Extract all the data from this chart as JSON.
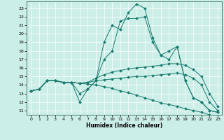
{
  "xlabel": "Humidex (Indice chaleur)",
  "background_color": "#cceee8",
  "grid_color": "#ffffff",
  "line_color": "#1a7a6e",
  "xlim": [
    -0.5,
    23.5
  ],
  "ylim": [
    10.5,
    23.8
  ],
  "yticks": [
    11,
    12,
    13,
    14,
    15,
    16,
    17,
    18,
    19,
    20,
    21,
    22,
    23
  ],
  "xticks": [
    0,
    1,
    2,
    3,
    4,
    5,
    6,
    7,
    8,
    9,
    10,
    11,
    12,
    13,
    14,
    15,
    16,
    17,
    18,
    19,
    20,
    21,
    22,
    23
  ],
  "series": [
    [
      13.3,
      13.5,
      14.5,
      14.5,
      14.3,
      14.3,
      13.0,
      13.5,
      14.5,
      19.0,
      21.0,
      20.5,
      22.5,
      23.5,
      23.0,
      19.5,
      17.5,
      18.0,
      18.5,
      14.5,
      12.5,
      12.0,
      11.0,
      10.8
    ],
    [
      13.3,
      13.5,
      14.5,
      14.5,
      14.3,
      14.3,
      12.0,
      13.5,
      14.5,
      17.0,
      18.0,
      21.5,
      21.8,
      21.8,
      22.0,
      19.0,
      17.5,
      17.0,
      18.5,
      14.5,
      12.5,
      12.0,
      11.0,
      10.8
    ],
    [
      13.3,
      13.5,
      14.5,
      14.5,
      14.3,
      14.3,
      14.2,
      14.3,
      14.8,
      15.2,
      15.5,
      15.7,
      15.9,
      16.0,
      16.1,
      16.2,
      16.3,
      16.5,
      16.5,
      16.3,
      15.8,
      15.0,
      13.0,
      11.5
    ],
    [
      13.3,
      13.5,
      14.5,
      14.5,
      14.3,
      14.3,
      14.2,
      14.3,
      14.5,
      14.6,
      14.7,
      14.8,
      14.9,
      15.0,
      15.0,
      15.1,
      15.2,
      15.3,
      15.4,
      15.2,
      14.8,
      14.0,
      12.0,
      11.0
    ],
    [
      13.3,
      13.5,
      14.5,
      14.5,
      14.3,
      14.3,
      14.2,
      14.1,
      14.0,
      13.8,
      13.6,
      13.3,
      13.1,
      12.8,
      12.5,
      12.2,
      11.9,
      11.7,
      11.5,
      11.2,
      11.0,
      10.8,
      10.5,
      10.3
    ]
  ]
}
